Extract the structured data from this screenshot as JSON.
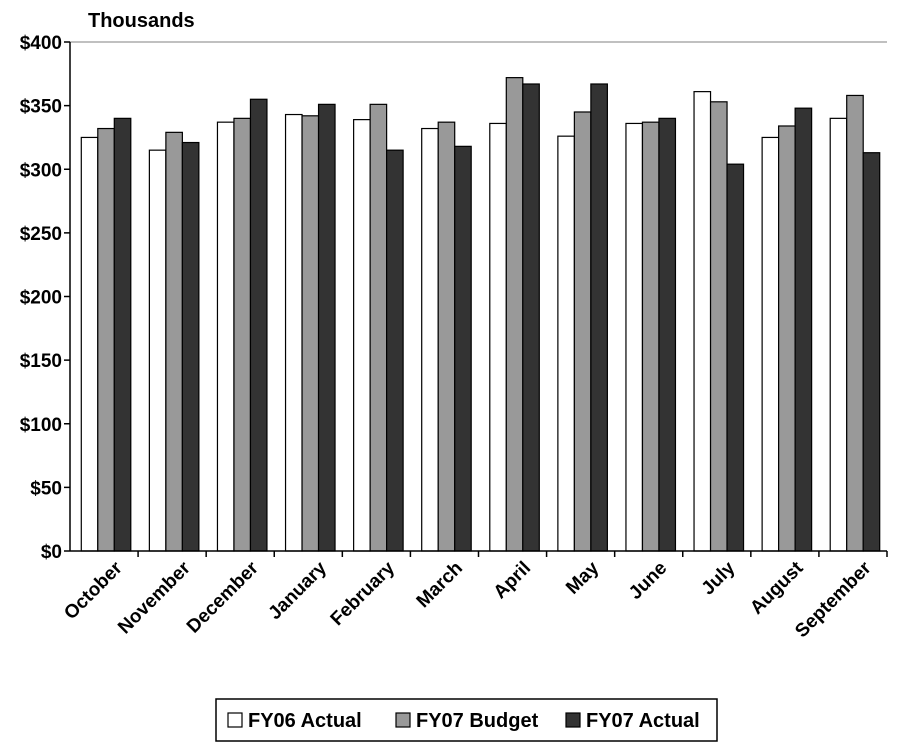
{
  "chart_data": {
    "type": "bar",
    "unit_label": "Thousands",
    "categories": [
      "October",
      "November",
      "December",
      "January",
      "February",
      "March",
      "April",
      "May",
      "June",
      "July",
      "August",
      "September"
    ],
    "series": [
      {
        "name": "FY06 Actual",
        "color": "#ffffff",
        "values": [
          325,
          315,
          337,
          343,
          339,
          332,
          336,
          326,
          336,
          361,
          325,
          340
        ]
      },
      {
        "name": "FY07 Budget",
        "color": "#999999",
        "values": [
          332,
          329,
          340,
          342,
          351,
          337,
          372,
          345,
          337,
          353,
          334,
          358
        ]
      },
      {
        "name": "FY07 Actual",
        "color": "#333333",
        "values": [
          340,
          321,
          355,
          351,
          315,
          318,
          367,
          367,
          340,
          304,
          348,
          313
        ]
      }
    ],
    "ylim": [
      0,
      400
    ],
    "yticks": [
      0,
      50,
      100,
      150,
      200,
      250,
      300,
      350,
      400
    ],
    "ytick_labels": [
      "$0",
      "$50",
      "$100",
      "$150",
      "$200",
      "$250",
      "$300",
      "$350",
      "$400"
    ],
    "grid": "horizontal-top-only",
    "legend_position": "bottom-center"
  }
}
